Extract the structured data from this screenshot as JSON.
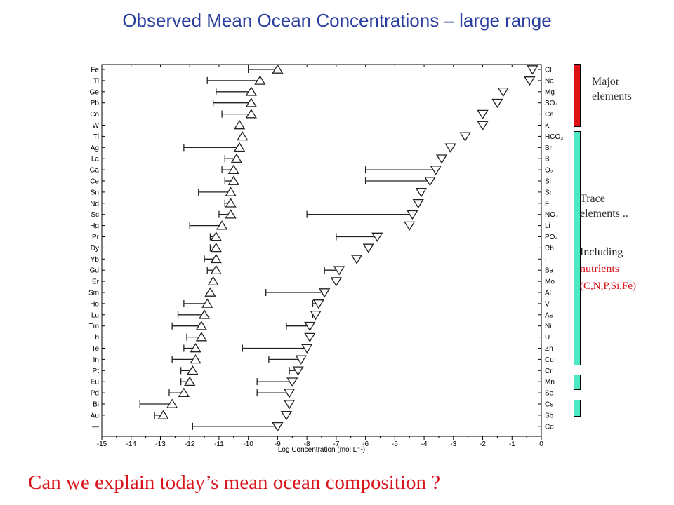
{
  "title": "Observed Mean Ocean Concentrations – large range",
  "bottom_text": "Can we explain today’s mean ocean composition ?",
  "legend": {
    "major": "Major\nelements",
    "trace": "Trace\nelements ..",
    "including": "Including",
    "nutrients": "nutrients",
    "nutrient_list": "(C,N,P,Si,Fe)",
    "major_color": "#dd1111",
    "trace_color": "#4de8c4"
  },
  "chart_data": {
    "type": "scatter",
    "xlabel": "Log Concentration (mol L⁻¹)",
    "xlim": [
      -15,
      0
    ],
    "xticks": [
      -15,
      -14,
      -13,
      -12,
      -11,
      -10,
      -9,
      -8,
      -7,
      -6,
      -5,
      -4,
      -3,
      -2,
      -1,
      0
    ],
    "series": [
      {
        "marker": "triangle-up",
        "points": [
          {
            "label": "Fe",
            "x": -9.0,
            "range_min": -10.0
          },
          {
            "label": "Ti",
            "x": -9.6,
            "range_min": -11.4
          },
          {
            "label": "Ge",
            "x": -9.9,
            "range_min": -11.1
          },
          {
            "label": "Pb",
            "x": -9.9,
            "range_min": -11.2
          },
          {
            "label": "Co",
            "x": -9.9,
            "range_min": -10.9
          },
          {
            "label": "W",
            "x": -10.3
          },
          {
            "label": "Tl",
            "x": -10.2
          },
          {
            "label": "Ag",
            "x": -10.3,
            "range_min": -12.2
          },
          {
            "label": "La",
            "x": -10.4,
            "range_min": -10.8
          },
          {
            "label": "Ga",
            "x": -10.5,
            "range_min": -10.9
          },
          {
            "label": "Ce",
            "x": -10.5,
            "range_min": -10.8
          },
          {
            "label": "Sn",
            "x": -10.6,
            "range_min": -11.7
          },
          {
            "label": "Nd",
            "x": -10.6,
            "range_min": -10.8
          },
          {
            "label": "Sc",
            "x": -10.6,
            "range_min": -11.0
          },
          {
            "label": "Hg",
            "x": -10.9,
            "range_min": -12.0
          },
          {
            "label": "Pr",
            "x": -11.1,
            "range_min": -11.3
          },
          {
            "label": "Dy",
            "x": -11.1,
            "range_min": -11.3
          },
          {
            "label": "Yb",
            "x": -11.1,
            "range_min": -11.5
          },
          {
            "label": "Gd",
            "x": -11.1,
            "range_min": -11.4
          },
          {
            "label": "Er",
            "x": -11.2
          },
          {
            "label": "Sm",
            "x": -11.3
          },
          {
            "label": "Ho",
            "x": -11.4,
            "range_min": -12.2
          },
          {
            "label": "Lu",
            "x": -11.5,
            "range_min": -12.4
          },
          {
            "label": "Tm",
            "x": -11.6,
            "range_min": -12.6
          },
          {
            "label": "Tb",
            "x": -11.6,
            "range_min": -12.1
          },
          {
            "label": "Te",
            "x": -11.8,
            "range_min": -12.2
          },
          {
            "label": "In",
            "x": -11.8,
            "range_min": -12.6
          },
          {
            "label": "Pt",
            "x": -11.9,
            "range_min": -12.3
          },
          {
            "label": "Eu",
            "x": -12.0,
            "range_min": -12.3
          },
          {
            "label": "Pd",
            "x": -12.2,
            "range_min": -12.7
          },
          {
            "label": "Bi",
            "x": -12.6,
            "range_min": -13.7
          },
          {
            "label": "Au",
            "x": -12.9,
            "range_min": -13.2
          },
          {
            "label": "—"
          }
        ]
      },
      {
        "marker": "triangle-down",
        "points": [
          {
            "label": "Cl",
            "x": -0.3
          },
          {
            "label": "Na",
            "x": -0.4
          },
          {
            "label": "Mg",
            "x": -1.3
          },
          {
            "label": "SO₄",
            "x": -1.5
          },
          {
            "label": "Ca",
            "x": -2.0
          },
          {
            "label": "K",
            "x": -2.0
          },
          {
            "label": "HCO₃",
            "x": -2.6
          },
          {
            "label": "Br",
            "x": -3.1
          },
          {
            "label": "B",
            "x": -3.4
          },
          {
            "label": "O₂",
            "x": -3.6,
            "range_min": -6.0
          },
          {
            "label": "Si",
            "x": -3.8,
            "range_min": -6.0
          },
          {
            "label": "Sr",
            "x": -4.1
          },
          {
            "label": "F",
            "x": -4.2
          },
          {
            "label": "NO₃",
            "x": -4.4,
            "range_min": -8.0
          },
          {
            "label": "Li",
            "x": -4.5
          },
          {
            "label": "PO₄",
            "x": -5.6,
            "range_min": -7.0
          },
          {
            "label": "Rb",
            "x": -5.9
          },
          {
            "label": "I",
            "x": -6.3
          },
          {
            "label": "Ba",
            "x": -6.9,
            "range_min": -7.4
          },
          {
            "label": "Mo",
            "x": -7.0
          },
          {
            "label": "Al",
            "x": -7.4,
            "range_min": -9.4
          },
          {
            "label": "V",
            "x": -7.6,
            "range_min": -7.8
          },
          {
            "label": "As",
            "x": -7.7,
            "range_min": -7.8
          },
          {
            "label": "Ni",
            "x": -7.9,
            "range_min": -8.7
          },
          {
            "label": "U",
            "x": -7.9
          },
          {
            "label": "Zn",
            "x": -8.0,
            "range_min": -10.2
          },
          {
            "label": "Cu",
            "x": -8.2,
            "range_min": -9.3
          },
          {
            "label": "Cr",
            "x": -8.3,
            "range_min": -8.6
          },
          {
            "label": "Mn",
            "x": -8.5,
            "range_min": -9.7
          },
          {
            "label": "Se",
            "x": -8.6,
            "range_min": -9.7
          },
          {
            "label": "Cs",
            "x": -8.6
          },
          {
            "label": "Sb",
            "x": -8.7
          },
          {
            "label": "Cd",
            "x": -9.0,
            "range_min": -11.9
          }
        ]
      }
    ]
  }
}
